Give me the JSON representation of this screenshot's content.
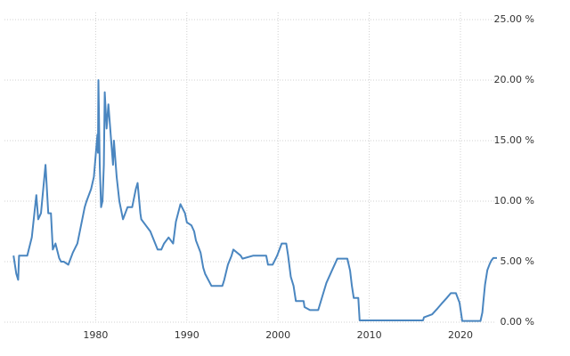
{
  "chart_data": {
    "type": "line",
    "x": [
      1971.0,
      1971.3,
      1971.5,
      1971.6,
      1972.5,
      1973.0,
      1973.5,
      1973.7,
      1974.0,
      1974.5,
      1974.8,
      1975.1,
      1975.3,
      1975.6,
      1976.0,
      1976.2,
      1976.5,
      1977.0,
      1977.5,
      1978.0,
      1978.8,
      1979.0,
      1979.5,
      1979.8,
      1980.2,
      1980.25,
      1980.3,
      1980.45,
      1980.6,
      1980.75,
      1980.9,
      1981.0,
      1981.2,
      1981.4,
      1981.7,
      1981.9,
      1982.0,
      1982.3,
      1982.6,
      1983.0,
      1983.5,
      1984.0,
      1984.4,
      1984.6,
      1984.9,
      1985.0,
      1985.5,
      1986.0,
      1986.8,
      1987.2,
      1987.5,
      1988.0,
      1988.5,
      1988.8,
      1989.3,
      1989.8,
      1990.0,
      1990.5,
      1990.8,
      1991.0,
      1991.5,
      1991.8,
      1992.0,
      1992.7,
      1993.9,
      1994.1,
      1994.5,
      1994.9,
      1995.1,
      1995.9,
      1996.1,
      1997.3,
      1998.7,
      1998.9,
      1999.4,
      1999.9,
      2000.4,
      2000.9,
      2001.1,
      2001.4,
      2001.7,
      2001.95,
      2002.8,
      2002.9,
      2003.5,
      2004.4,
      2004.9,
      2005.3,
      2005.9,
      2006.5,
      2007.6,
      2007.9,
      2008.1,
      2008.3,
      2008.8,
      2008.95,
      2015.9,
      2016.0,
      2016.9,
      2017.5,
      2017.9,
      2018.5,
      2018.95,
      2019.5,
      2019.9,
      2020.2,
      2022.2,
      2022.4,
      2022.5,
      2022.7,
      2022.95,
      2023.2,
      2023.4,
      2023.6,
      2024.0
    ],
    "values": [
      5.5,
      4.0,
      3.5,
      5.5,
      5.5,
      7.0,
      10.5,
      8.5,
      9.0,
      13.0,
      9.0,
      9.0,
      6.0,
      6.5,
      5.3,
      5.0,
      5.0,
      4.75,
      5.75,
      6.5,
      9.5,
      10.0,
      11.0,
      12.0,
      15.5,
      14.0,
      20.0,
      13.0,
      9.5,
      10.0,
      13.0,
      19.0,
      16.0,
      18.0,
      15.0,
      13.0,
      15.0,
      12.0,
      10.0,
      8.5,
      9.5,
      9.5,
      11.0,
      11.5,
      9.0,
      8.5,
      8.0,
      7.5,
      6.0,
      6.0,
      6.5,
      7.0,
      6.5,
      8.3,
      9.75,
      9.0,
      8.25,
      8.0,
      7.5,
      6.75,
      5.75,
      4.5,
      4.0,
      3.0,
      3.0,
      3.5,
      4.75,
      5.5,
      6.0,
      5.5,
      5.25,
      5.5,
      5.5,
      4.75,
      4.75,
      5.5,
      6.5,
      6.5,
      5.5,
      3.75,
      3.0,
      1.75,
      1.75,
      1.25,
      1.0,
      1.0,
      2.25,
      3.25,
      4.25,
      5.25,
      5.25,
      4.25,
      3.0,
      2.0,
      2.0,
      0.15,
      0.15,
      0.4,
      0.65,
      1.15,
      1.5,
      2.0,
      2.4,
      2.4,
      1.6,
      0.1,
      0.1,
      0.8,
      1.6,
      3.1,
      4.3,
      4.8,
      5.1,
      5.3,
      5.3
    ],
    "color": "#4a86c0",
    "xlim": [
      1970,
      2024.2
    ],
    "xticks": [
      1980,
      1990,
      2000,
      2010,
      2020
    ],
    "ylim": [
      0,
      25
    ],
    "yticks": [
      {
        "value": 0,
        "label": "0.00 %"
      },
      {
        "value": 5,
        "label": "5.00 %"
      },
      {
        "value": 10,
        "label": "10.00 %"
      },
      {
        "value": 15,
        "label": "15.00 %"
      },
      {
        "value": 20,
        "label": "20.00 %"
      },
      {
        "value": 25,
        "label": "25.00 %"
      }
    ],
    "grid": true
  }
}
